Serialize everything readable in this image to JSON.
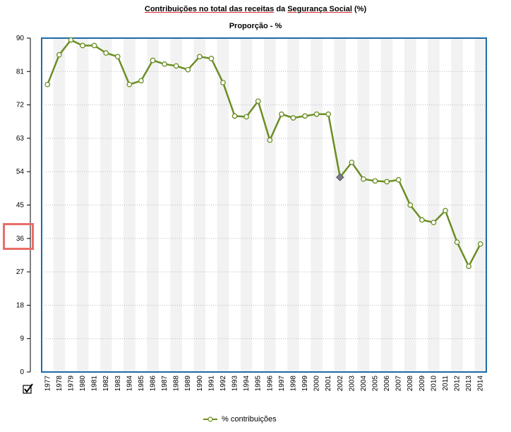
{
  "title": {
    "part1": "Contribuições no total das receitas",
    "part2": " da ",
    "part3": "Segurança Social",
    "part4": " (%)"
  },
  "subtitle": "Proporção - %",
  "legend": {
    "label": "% contribuições"
  },
  "colors": {
    "line": "#6b8e23",
    "marker_fill": "#ffffff",
    "highlight_marker": "#7a7a8c",
    "frame": "#1f6aa5",
    "band": "#f2f2f2",
    "grid": "#bbbbbb",
    "annotation_box": "#ea6d68"
  },
  "icons": {
    "checkbox": "checkmark-icon"
  },
  "chart_data": {
    "type": "line",
    "title": "Contribuições no total das receitas da Segurança Social (%)",
    "subtitle": "Proporção - %",
    "x": [
      "1977",
      "1978",
      "1979",
      "1980",
      "1981",
      "1982",
      "1983",
      "1984",
      "1985",
      "1986",
      "1987",
      "1988",
      "1989",
      "1990",
      "1991",
      "1992",
      "1993",
      "1994",
      "1995",
      "1996",
      "1997",
      "1998",
      "1999",
      "2000",
      "2001",
      "2002",
      "2003",
      "2004",
      "2005",
      "2006",
      "2007",
      "2008",
      "2009",
      "2010",
      "2011",
      "2012",
      "2013",
      "2014"
    ],
    "series": [
      {
        "name": "% contribuições",
        "values": [
          77.5,
          85.5,
          89.5,
          88.0,
          88.0,
          86.0,
          85.0,
          77.5,
          78.5,
          84.0,
          83.0,
          82.5,
          81.5,
          85.0,
          84.5,
          78.0,
          69.0,
          68.8,
          73.0,
          62.5,
          69.5,
          68.5,
          69.0,
          69.5,
          69.5,
          52.5,
          56.5,
          52.0,
          51.5,
          51.3,
          51.8,
          45.0,
          41.0,
          40.3,
          43.5,
          35.0,
          28.5,
          34.5
        ]
      }
    ],
    "highlighted_point": "2002",
    "ylim": [
      0,
      90
    ],
    "yticks": [
      0,
      9,
      18,
      27,
      36,
      45,
      54,
      63,
      72,
      81,
      90
    ],
    "grid": true,
    "legend_position": "bottom-center"
  }
}
